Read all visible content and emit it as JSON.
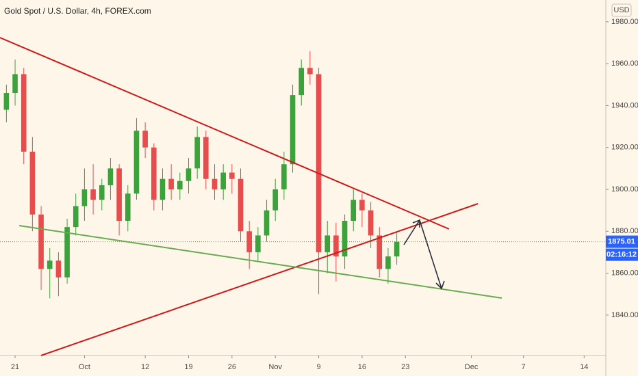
{
  "chart_data": {
    "type": "candlestick",
    "title": "Gold Spot / U.S. Dollar, 4h, FOREX.com",
    "currency": "USD",
    "countdown": "02:16:12",
    "up_color": "#3ca23c",
    "down_color": "#e84d4d",
    "grid": false,
    "x": [
      -1,
      0,
      1,
      2,
      3,
      4,
      5,
      6,
      7,
      8,
      9,
      10,
      11,
      12,
      13,
      14,
      15,
      16,
      17,
      18,
      19,
      20,
      21,
      22,
      23,
      24,
      25,
      26,
      27,
      28,
      29,
      30,
      31,
      32,
      33,
      34,
      35,
      36,
      37,
      38,
      39,
      40,
      41,
      42,
      43,
      44
    ],
    "open": [
      1938,
      1946,
      1955,
      1918,
      1888,
      1862,
      1866,
      1858,
      1882,
      1892,
      1900,
      1895,
      1902,
      1910,
      1885,
      1898,
      1928,
      1920,
      1895,
      1905,
      1900,
      1904,
      1910,
      1925,
      1905,
      1900,
      1908,
      1905,
      1880,
      1870,
      1878,
      1890,
      1900,
      1912,
      1945,
      1958,
      1955,
      1870,
      1878,
      1868,
      1885,
      1895,
      1890,
      1878,
      1862,
      1868
    ],
    "high": [
      1950,
      1962,
      1958,
      1925,
      1892,
      1872,
      1870,
      1886,
      1898,
      1910,
      1912,
      1905,
      1915,
      1912,
      1902,
      1934,
      1932,
      1922,
      1910,
      1912,
      1908,
      1915,
      1930,
      1928,
      1912,
      1912,
      1912,
      1910,
      1885,
      1882,
      1895,
      1905,
      1918,
      1950,
      1962,
      1966,
      1958,
      1885,
      1884,
      1888,
      1900,
      1898,
      1894,
      1882,
      1872,
      1880
    ],
    "low": [
      1932,
      1940,
      1912,
      1880,
      1852,
      1848,
      1849,
      1855,
      1878,
      1885,
      1888,
      1890,
      1895,
      1878,
      1880,
      1895,
      1915,
      1890,
      1890,
      1895,
      1895,
      1898,
      1905,
      1900,
      1895,
      1895,
      1898,
      1875,
      1862,
      1866,
      1875,
      1885,
      1895,
      1908,
      1940,
      1950,
      1850,
      1860,
      1856,
      1862,
      1880,
      1882,
      1872,
      1858,
      1855,
      1864
    ],
    "close": [
      1946,
      1955,
      1918,
      1888,
      1862,
      1866,
      1858,
      1882,
      1892,
      1900,
      1895,
      1902,
      1910,
      1885,
      1898,
      1928,
      1920,
      1895,
      1905,
      1900,
      1904,
      1910,
      1925,
      1905,
      1900,
      1908,
      1905,
      1880,
      1870,
      1878,
      1890,
      1900,
      1912,
      1945,
      1958,
      1955,
      1870,
      1878,
      1868,
      1885,
      1895,
      1890,
      1878,
      1862,
      1868,
      1875.01
    ],
    "xlim": [
      -1.74,
      68.1
    ],
    "xticks": [
      {
        "value": 0,
        "label": "21"
      },
      {
        "value": 8,
        "label": "Oct"
      },
      {
        "value": 15,
        "label": "12"
      },
      {
        "value": 20,
        "label": "19"
      },
      {
        "value": 25,
        "label": "26"
      },
      {
        "value": 30,
        "label": "Nov"
      },
      {
        "value": 35,
        "label": "9"
      },
      {
        "value": 40,
        "label": "16"
      },
      {
        "value": 45,
        "label": "23"
      },
      {
        "value": 52.6,
        "label": "Dec"
      },
      {
        "value": 58.6,
        "label": "7"
      },
      {
        "value": 65.6,
        "label": "14"
      }
    ],
    "ylim": [
      1820.7,
      1990.4
    ],
    "yticks": [
      {
        "value": 1840,
        "label": "1840.00"
      },
      {
        "value": 1860,
        "label": "1860.00"
      },
      {
        "value": 1880,
        "label": "1880.00"
      },
      {
        "value": 1900,
        "label": "1900.00"
      },
      {
        "value": 1920,
        "label": "1920.00"
      },
      {
        "value": 1940,
        "label": "1940.00"
      },
      {
        "value": 1960,
        "label": "1960.00"
      },
      {
        "value": 1980,
        "label": "1980.00"
      }
    ]
  }
}
